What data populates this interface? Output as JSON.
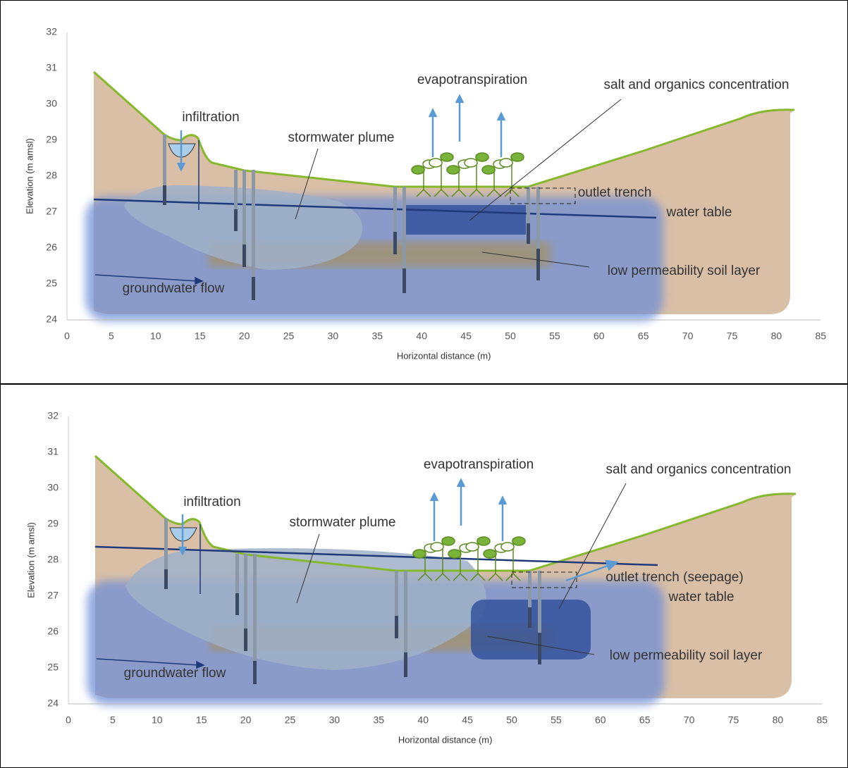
{
  "panels": [
    {
      "y_axis_label": "Elevation (m amsl)",
      "x_axis_label": "Horizontal distance (m)",
      "xticks": [
        0,
        5,
        10,
        15,
        20,
        25,
        30,
        35,
        40,
        45,
        50,
        55,
        60,
        65,
        70,
        75,
        80,
        85
      ],
      "yticks": [
        24,
        25,
        26,
        27,
        28,
        29,
        30,
        31,
        32
      ],
      "labels": [
        "infiltration",
        "stormwater plume",
        "evapotranspiration",
        "salt and organics concentration",
        "outlet trench",
        "water table",
        "low permeability soil layer",
        "groundwater flow"
      ]
    },
    {
      "y_axis_label": "Elevation (m amsl)",
      "x_axis_label": "Horizontal distance (m)",
      "xticks": [
        0,
        5,
        10,
        15,
        20,
        25,
        30,
        35,
        40,
        45,
        50,
        55,
        60,
        65,
        70,
        75,
        80,
        85
      ],
      "yticks": [
        24,
        25,
        26,
        27,
        28,
        29,
        30,
        31,
        32
      ],
      "labels": [
        "infiltration",
        "stormwater plume",
        "evapotranspiration",
        "salt and organics concentration",
        "outlet trench (seepage)",
        "water table",
        "low permeability soil layer",
        "groundwater flow"
      ]
    }
  ]
}
